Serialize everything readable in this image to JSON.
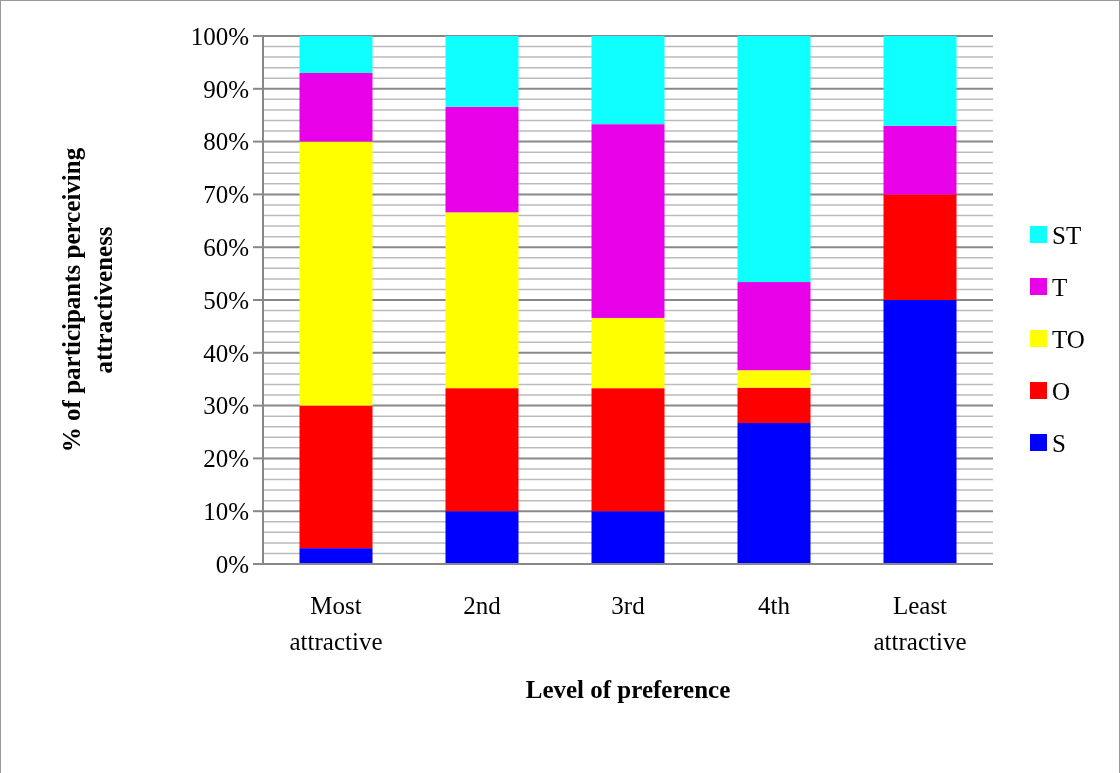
{
  "chart_data": {
    "type": "bar",
    "stacked": true,
    "xlabel": "Level of preference",
    "ylabel": "% of participants perceiving attractiveness",
    "categories": [
      "Most attractive",
      "2nd",
      "3rd",
      "4th",
      "Least attractive"
    ],
    "series": [
      {
        "name": "S",
        "color": "#0000ff",
        "values": [
          3,
          10,
          10,
          26.7,
          50
        ]
      },
      {
        "name": "O",
        "color": "#ff0000",
        "values": [
          27,
          23.3,
          23.3,
          6.7,
          20
        ]
      },
      {
        "name": "TO",
        "color": "#ffff00",
        "values": [
          50,
          33.3,
          13.3,
          3.3,
          0
        ]
      },
      {
        "name": "T",
        "color": "#e800e8",
        "values": [
          13,
          20,
          36.7,
          16.7,
          13
        ]
      },
      {
        "name": "ST",
        "color": "#0fffff",
        "values": [
          7,
          13.4,
          16.7,
          46.6,
          17
        ]
      }
    ],
    "ylim": [
      0,
      100
    ],
    "yticks": [
      {
        "value": 0,
        "label": "0%"
      },
      {
        "value": 2,
        "label": null
      },
      {
        "value": 4,
        "label": null
      },
      {
        "value": 6,
        "label": null
      },
      {
        "value": 8,
        "label": null
      },
      {
        "value": 10,
        "label": "10%"
      },
      {
        "value": 12,
        "label": null
      },
      {
        "value": 14,
        "label": null
      },
      {
        "value": 16,
        "label": null
      },
      {
        "value": 18,
        "label": null
      },
      {
        "value": 20,
        "label": "20%"
      },
      {
        "value": 22,
        "label": null
      },
      {
        "value": 24,
        "label": null
      },
      {
        "value": 26,
        "label": null
      },
      {
        "value": 28,
        "label": null
      },
      {
        "value": 30,
        "label": "30%"
      },
      {
        "value": 32,
        "label": null
      },
      {
        "value": 34,
        "label": null
      },
      {
        "value": 36,
        "label": null
      },
      {
        "value": 38,
        "label": null
      },
      {
        "value": 40,
        "label": "40%"
      },
      {
        "value": 42,
        "label": null
      },
      {
        "value": 44,
        "label": null
      },
      {
        "value": 46,
        "label": null
      },
      {
        "value": 48,
        "label": null
      },
      {
        "value": 50,
        "label": "50%"
      },
      {
        "value": 52,
        "label": null
      },
      {
        "value": 54,
        "label": null
      },
      {
        "value": 56,
        "label": null
      },
      {
        "value": 58,
        "label": null
      },
      {
        "value": 60,
        "label": "60%"
      },
      {
        "value": 62,
        "label": null
      },
      {
        "value": 64,
        "label": null
      },
      {
        "value": 66,
        "label": null
      },
      {
        "value": 68,
        "label": null
      },
      {
        "value": 70,
        "label": "70%"
      },
      {
        "value": 72,
        "label": null
      },
      {
        "value": 74,
        "label": null
      },
      {
        "value": 76,
        "label": null
      },
      {
        "value": 78,
        "label": null
      },
      {
        "value": 80,
        "label": "80%"
      },
      {
        "value": 82,
        "label": null
      },
      {
        "value": 84,
        "label": null
      },
      {
        "value": 86,
        "label": null
      },
      {
        "value": 88,
        "label": null
      },
      {
        "value": 90,
        "label": "90%"
      },
      {
        "value": 92,
        "label": null
      },
      {
        "value": 94,
        "label": null
      },
      {
        "value": 96,
        "label": null
      },
      {
        "value": 98,
        "label": null
      },
      {
        "value": 100,
        "label": "100%"
      }
    ],
    "grid": "y",
    "legend": "right"
  }
}
